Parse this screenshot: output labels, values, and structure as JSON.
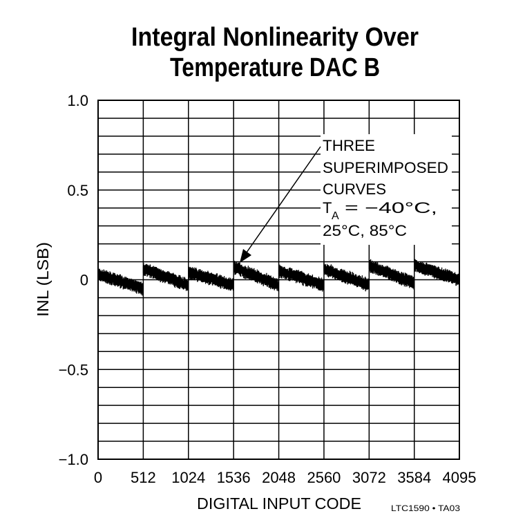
{
  "chart_data": {
    "type": "line",
    "title": [
      "Integral Nonlinearity Over",
      "Temperature DAC B"
    ],
    "xlabel": "DIGITAL INPUT CODE",
    "ylabel": "INL (LSB)",
    "xlim": [
      0,
      4095
    ],
    "ylim": [
      -1.0,
      1.0
    ],
    "x_ticks": [
      0,
      512,
      1024,
      1536,
      2048,
      2560,
      3072,
      3584,
      4095
    ],
    "x_tick_labels": [
      "0",
      "512",
      "1024",
      "1536",
      "2048",
      "2560",
      "3072",
      "3584",
      "4095"
    ],
    "y_ticks": [
      1.0,
      0.5,
      0,
      -0.5,
      -1.0
    ],
    "y_tick_labels": [
      "1.0",
      "0.5",
      "0",
      "−0.5",
      "−1.0"
    ],
    "grid": true,
    "grid_y_step": 0.1,
    "grid_x_step": 512,
    "series_segments": [
      {
        "x": [
          0,
          511
        ],
        "y": [
          0.03,
          -0.05
        ]
      },
      {
        "x": [
          512,
          1023
        ],
        "y": [
          0.06,
          -0.03
        ]
      },
      {
        "x": [
          1024,
          1535
        ],
        "y": [
          0.04,
          -0.03
        ]
      },
      {
        "x": [
          1536,
          2047
        ],
        "y": [
          0.07,
          -0.03
        ]
      },
      {
        "x": [
          2048,
          2559
        ],
        "y": [
          0.05,
          -0.03
        ]
      },
      {
        "x": [
          2560,
          3071
        ],
        "y": [
          0.06,
          -0.03
        ]
      },
      {
        "x": [
          3072,
          3583
        ],
        "y": [
          0.08,
          -0.02
        ]
      },
      {
        "x": [
          3584,
          4095
        ],
        "y": [
          0.08,
          0.0
        ]
      }
    ],
    "annotation": {
      "lines": [
        "THREE",
        "SUPERIMPOSED",
        "CURVES",
        "= −40°C,",
        "25°C, 85°C"
      ],
      "ta_label": "T",
      "ta_sub": "A",
      "arrow_target": {
        "x": 1536,
        "y": 0.07
      }
    },
    "footnote": "LTC1590 • TA03",
    "line_color": "#000000"
  }
}
